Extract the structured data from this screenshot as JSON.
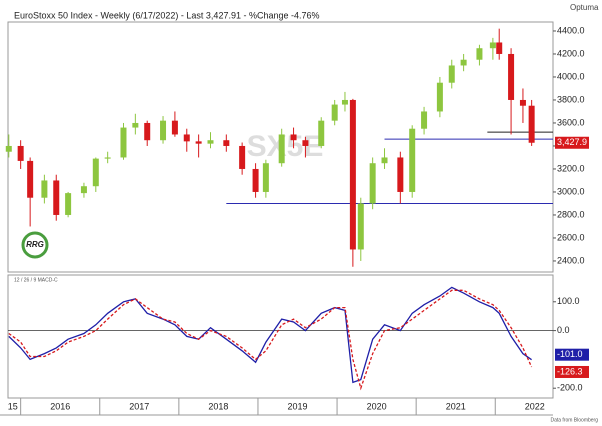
{
  "chart_data": {
    "type": "candlestick",
    "title": "EuroStoxx 50 Index - Weekly (6/17/2022) - Last 3,427.91 - %Change -4.76%",
    "watermark": "SX5E",
    "brand": "Optuma",
    "logo": "RRG",
    "source": "Data from Bloomberg",
    "x": [
      2015.85,
      2016.0,
      2016.12,
      2016.3,
      2016.45,
      2016.6,
      2016.8,
      2016.95,
      2017.1,
      2017.3,
      2017.45,
      2017.6,
      2017.8,
      2017.95,
      2018.1,
      2018.25,
      2018.4,
      2018.6,
      2018.8,
      2018.97,
      2019.1,
      2019.3,
      2019.45,
      2019.6,
      2019.8,
      2019.97,
      2020.1,
      2020.2,
      2020.3,
      2020.45,
      2020.6,
      2020.8,
      2020.95,
      2021.1,
      2021.3,
      2021.45,
      2021.6,
      2021.8,
      2021.97,
      2022.05,
      2022.2,
      2022.35,
      2022.46
    ],
    "open": [
      3350,
      3400,
      3270,
      2950,
      3100,
      2800,
      2990,
      3050,
      3290,
      3300,
      3560,
      3600,
      3450,
      3620,
      3500,
      3440,
      3420,
      3450,
      3400,
      3200,
      3000,
      3250,
      3500,
      3450,
      3400,
      3620,
      3760,
      3800,
      2500,
      2900,
      3250,
      3300,
      3000,
      3550,
      3700,
      3950,
      4100,
      4150,
      4250,
      4300,
      4200,
      3800,
      3750
    ],
    "high": [
      3500,
      3450,
      3300,
      3150,
      3150,
      3000,
      3080,
      3300,
      3350,
      3600,
      3680,
      3620,
      3660,
      3700,
      3550,
      3500,
      3520,
      3500,
      3430,
      3250,
      3280,
      3550,
      3560,
      3480,
      3650,
      3800,
      3870,
      3810,
      2950,
      3300,
      3380,
      3350,
      3580,
      3740,
      4000,
      4150,
      4200,
      4280,
      4340,
      4420,
      4250,
      3900,
      3800
    ],
    "low": [
      3300,
      3200,
      2700,
      2900,
      2750,
      2780,
      2950,
      3000,
      3250,
      3280,
      3500,
      3400,
      3420,
      3480,
      3350,
      3300,
      3380,
      3350,
      3150,
      2950,
      2950,
      3220,
      3380,
      3300,
      3380,
      3580,
      3700,
      2350,
      2400,
      2850,
      3200,
      2900,
      2950,
      3500,
      3650,
      3900,
      4050,
      4100,
      4150,
      4150,
      3500,
      3600,
      3400
    ],
    "close": [
      3400,
      3270,
      2950,
      3100,
      2800,
      2990,
      3050,
      3290,
      3300,
      3560,
      3600,
      3450,
      3620,
      3500,
      3440,
      3420,
      3450,
      3400,
      3200,
      3000,
      3250,
      3500,
      3450,
      3400,
      3620,
      3760,
      3800,
      2500,
      2900,
      3250,
      3300,
      3000,
      3550,
      3700,
      3950,
      4100,
      4150,
      4250,
      4300,
      4200,
      3800,
      3750,
      3427.91
    ],
    "up_color": "#8dc63f",
    "down_color": "#d7191c",
    "last": {
      "value": 3427.91,
      "label": "3,427.9"
    },
    "levels": [
      {
        "value": 2900,
        "start": 2018.6
      },
      {
        "value": 3460,
        "start": 2020.6
      },
      {
        "value": 3520,
        "start": 2021.9
      }
    ],
    "xlim": [
      2015.84,
      2022.73
    ],
    "xticks": [
      2016,
      2017,
      2018,
      2019,
      2020,
      2021,
      2022
    ],
    "xtick_labels": [
      {
        "value": 2015.9,
        "label": "15"
      },
      {
        "value": 2016.5,
        "label": "2016"
      },
      {
        "value": 2017.5,
        "label": "2017"
      },
      {
        "value": 2018.5,
        "label": "2018"
      },
      {
        "value": 2019.5,
        "label": "2019"
      },
      {
        "value": 2020.5,
        "label": "2020"
      },
      {
        "value": 2021.5,
        "label": "2021"
      },
      {
        "value": 2022.5,
        "label": "2022"
      }
    ],
    "ylim": [
      2304,
      4478
    ],
    "yticks": [
      {
        "value": 2400,
        "label": "2400.0"
      },
      {
        "value": 2600,
        "label": "2600.0"
      },
      {
        "value": 2800,
        "label": "2800.0"
      },
      {
        "value": 3000,
        "label": "3000.0"
      },
      {
        "value": 3200,
        "label": "3200.0"
      },
      {
        "value": 3400,
        "label": "3400.0"
      },
      {
        "value": 3600,
        "label": "3600.0"
      },
      {
        "value": 3800,
        "label": "3800.0"
      },
      {
        "value": 4000,
        "label": "4000.0"
      },
      {
        "value": 4200,
        "label": "4200.0"
      },
      {
        "value": 4400,
        "label": "4400.0"
      }
    ],
    "macd": {
      "label": "12 / 26 / 9 MACD-C",
      "ylim": [
        -234,
        193
      ],
      "yticks": [
        {
          "value": 100,
          "label": "100.0"
        },
        {
          "value": 0,
          "label": "0.0"
        },
        {
          "value": -200,
          "label": "-200.0"
        }
      ],
      "series": [
        {
          "name": "MACD",
          "color": "#1f1fa8",
          "dash": false,
          "end_label": "-101.0",
          "values": [
            -20,
            -60,
            -100,
            -80,
            -60,
            -30,
            -10,
            20,
            60,
            100,
            110,
            60,
            40,
            20,
            -20,
            -30,
            10,
            -30,
            -70,
            -110,
            -40,
            40,
            30,
            0,
            60,
            80,
            70,
            -180,
            -170,
            -30,
            20,
            0,
            60,
            90,
            120,
            150,
            130,
            100,
            80,
            60,
            -20,
            -80,
            -101
          ]
        },
        {
          "name": "Signal",
          "color": "#d7191c",
          "dash": true,
          "end_label": "-126.3",
          "values": [
            -10,
            -40,
            -90,
            -90,
            -70,
            -40,
            -20,
            0,
            40,
            90,
            110,
            80,
            40,
            30,
            -10,
            -30,
            0,
            -20,
            -60,
            -100,
            -70,
            20,
            40,
            10,
            40,
            80,
            80,
            -100,
            -200,
            -80,
            0,
            10,
            40,
            70,
            110,
            140,
            140,
            110,
            90,
            70,
            10,
            -60,
            -126.3
          ]
        }
      ]
    }
  }
}
